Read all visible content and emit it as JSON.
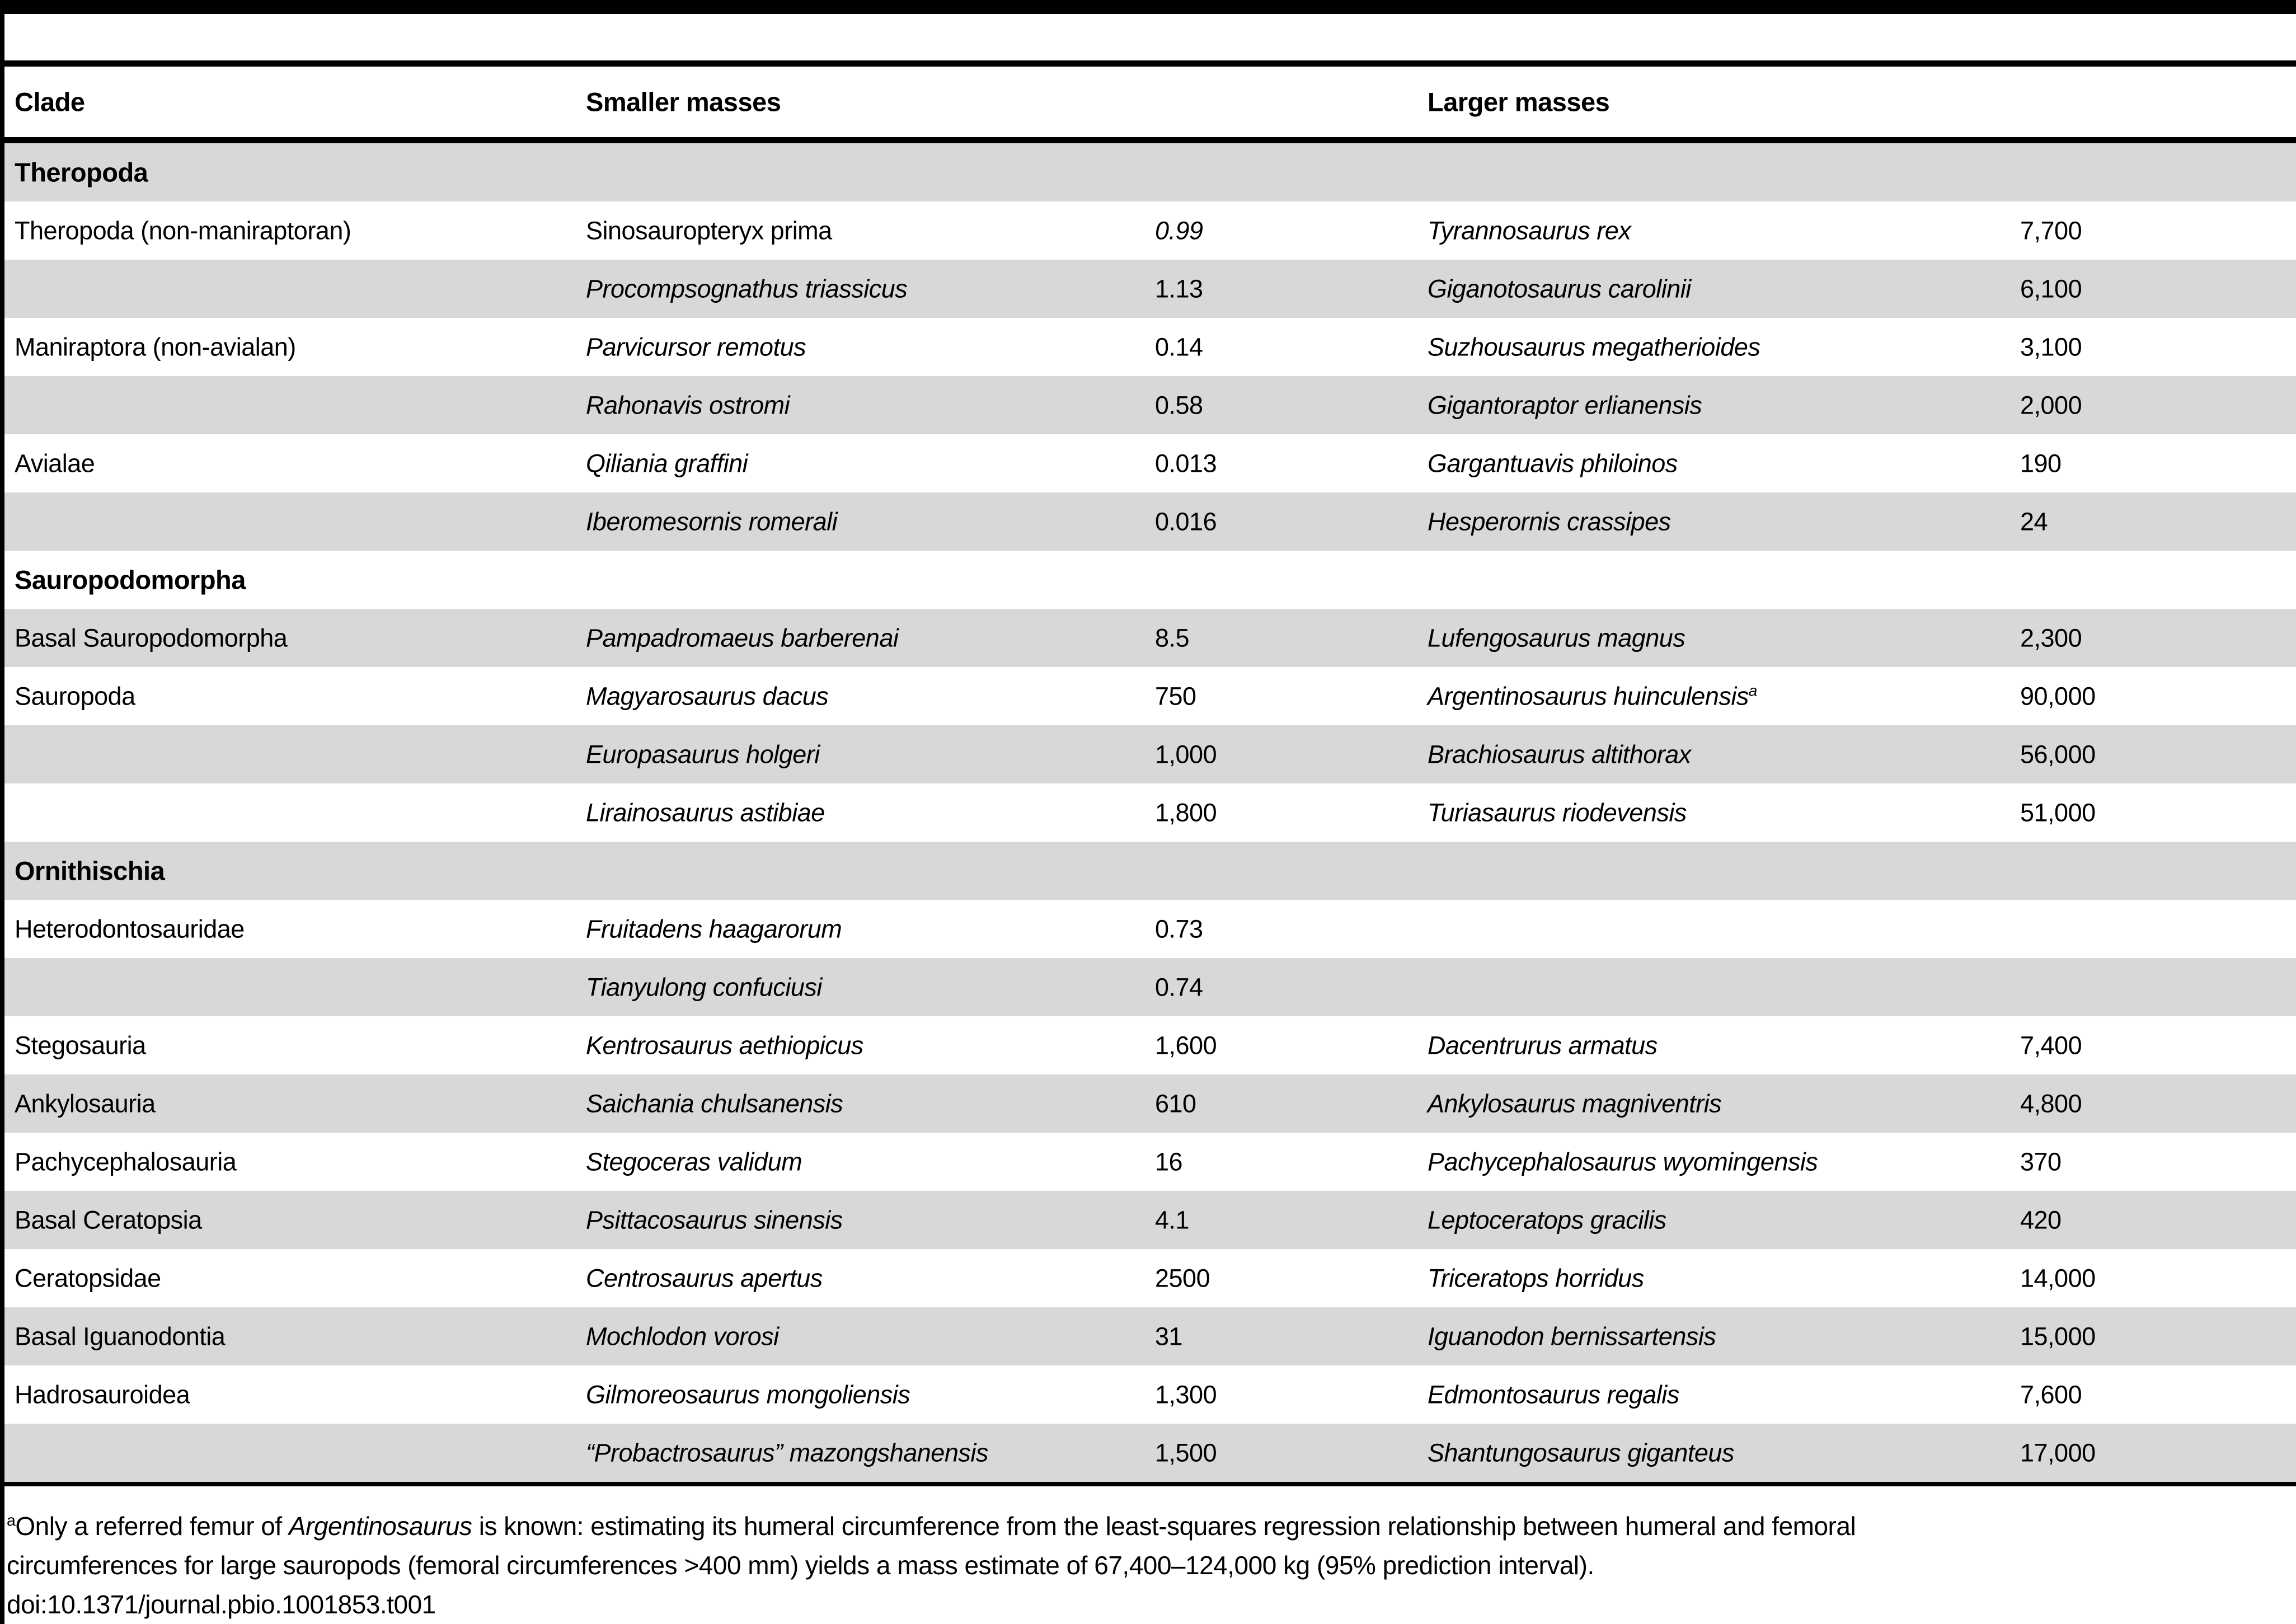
{
  "table": {
    "columns": {
      "clade": "Clade",
      "smaller": "Smaller masses",
      "larger": "Larger masses"
    },
    "rows": [
      {
        "type": "section",
        "shaded": true,
        "label": "Theropoda"
      },
      {
        "type": "data",
        "shaded": false,
        "clade": "Theropoda (non-maniraptoran)",
        "small_species": "Sinosauropteryx prima",
        "small_species_style": "roman",
        "small_mass": "0.99",
        "small_mass_style": "italic",
        "large_species": "Tyrannosaurus rex",
        "large_mass": "7,700"
      },
      {
        "type": "data",
        "shaded": true,
        "clade": "",
        "small_species": "Procompsognathus triassicus",
        "small_mass": "1.13",
        "large_species": "Giganotosaurus carolinii",
        "large_mass": "6,100"
      },
      {
        "type": "data",
        "shaded": false,
        "clade": "Maniraptora (non-avialan)",
        "small_species": "Parvicursor remotus",
        "small_mass": "0.14",
        "large_species": "Suzhousaurus megatherioides",
        "large_mass": "3,100"
      },
      {
        "type": "data",
        "shaded": true,
        "clade": "",
        "small_species": "Rahonavis ostromi",
        "small_mass": "0.58",
        "large_species": "Gigantoraptor erlianensis",
        "large_mass": "2,000"
      },
      {
        "type": "data",
        "shaded": false,
        "clade": "Avialae",
        "small_species": "Qiliania graffini",
        "small_mass": "0.013",
        "large_species": "Gargantuavis philoinos",
        "large_mass": "190"
      },
      {
        "type": "data",
        "shaded": true,
        "clade": "",
        "small_species": "Iberomesornis romerali",
        "small_mass": "0.016",
        "large_species": "Hesperornis crassipes",
        "large_mass": "24"
      },
      {
        "type": "section",
        "shaded": false,
        "label": "Sauropodomorpha"
      },
      {
        "type": "data",
        "shaded": true,
        "clade": "Basal Sauropodomorpha",
        "small_species": "Pampadromaeus barberenai",
        "small_mass": "8.5",
        "large_species": "Lufengosaurus magnus",
        "large_mass": "2,300"
      },
      {
        "type": "data",
        "shaded": false,
        "clade": "Sauropoda",
        "small_species": "Magyarosaurus dacus",
        "small_mass": "750",
        "large_species": "Argentinosaurus huinculensis",
        "large_species_sup": "a",
        "large_mass": "90,000"
      },
      {
        "type": "data",
        "shaded": true,
        "clade": "",
        "small_species": "Europasaurus holgeri",
        "small_mass": "1,000",
        "large_species": "Brachiosaurus altithorax",
        "large_mass": "56,000"
      },
      {
        "type": "data",
        "shaded": false,
        "clade": "",
        "small_species": "Lirainosaurus astibiae",
        "small_mass": "1,800",
        "large_species": "Turiasaurus riodevensis",
        "large_mass": "51,000"
      },
      {
        "type": "section",
        "shaded": true,
        "label": "Ornithischia"
      },
      {
        "type": "data",
        "shaded": false,
        "clade": "Heterodontosauridae",
        "small_species": "Fruitadens haagarorum",
        "small_mass": "0.73",
        "large_species": "",
        "large_mass": ""
      },
      {
        "type": "data",
        "shaded": true,
        "clade": "",
        "small_species": "Tianyulong confuciusi",
        "small_mass": "0.74",
        "large_species": "",
        "large_mass": ""
      },
      {
        "type": "data",
        "shaded": false,
        "clade": "Stegosauria",
        "small_species": "Kentrosaurus aethiopicus",
        "small_mass": "1,600",
        "large_species": "Dacentrurus armatus",
        "large_mass": "7,400"
      },
      {
        "type": "data",
        "shaded": true,
        "clade": "Ankylosauria",
        "small_species": "Saichania chulsanensis",
        "small_mass": "610",
        "large_species": "Ankylosaurus magniventris",
        "large_mass": "4,800"
      },
      {
        "type": "data",
        "shaded": false,
        "clade": "Pachycephalosauria",
        "small_species": "Stegoceras validum",
        "small_mass": "16",
        "large_species": "Pachycephalosaurus wyomingensis",
        "large_mass": "370"
      },
      {
        "type": "data",
        "shaded": true,
        "clade": "Basal Ceratopsia",
        "small_species": "Psittacosaurus sinensis",
        "small_mass": "4.1",
        "large_species": "Leptoceratops gracilis",
        "large_mass": "420"
      },
      {
        "type": "data",
        "shaded": false,
        "clade": "Ceratopsidae",
        "small_species": "Centrosaurus apertus",
        "small_mass": "2500",
        "large_species": "Triceratops horridus",
        "large_mass": "14,000"
      },
      {
        "type": "data",
        "shaded": true,
        "clade": "Basal Iguanodontia",
        "small_species": "Mochlodon vorosi",
        "small_mass": "31",
        "large_species": "Iguanodon bernissartensis",
        "large_mass": "15,000"
      },
      {
        "type": "data",
        "shaded": false,
        "clade": "Hadrosauroidea",
        "small_species": "Gilmoreosaurus mongoliensis",
        "small_mass": "1,300",
        "large_species": "Edmontosaurus regalis",
        "large_mass": "7,600"
      },
      {
        "type": "data",
        "shaded": true,
        "clade": "",
        "small_species": "“Probactrosaurus” mazongshanensis",
        "small_mass": "1,500",
        "large_species": "Shantungosaurus giganteus",
        "large_mass": "17,000"
      }
    ]
  },
  "footnote": {
    "marker": "a",
    "line1_pre": "Only a referred femur of ",
    "line1_italic": "Argentinosaurus",
    "line1_post": " is known: estimating its humeral circumference from the least-squares regression relationship between humeral and femoral",
    "line2": "circumferences for large sauropods (femoral circumferences >400 mm) yields a mass estimate of 67,400–124,000 kg (95% prediction interval).",
    "doi": "doi:10.1371/journal.pbio.1001853.t001"
  },
  "colors": {
    "stripe": "#d8d8d8",
    "rule": "#000000",
    "background": "#ffffff",
    "text": "#000000"
  }
}
